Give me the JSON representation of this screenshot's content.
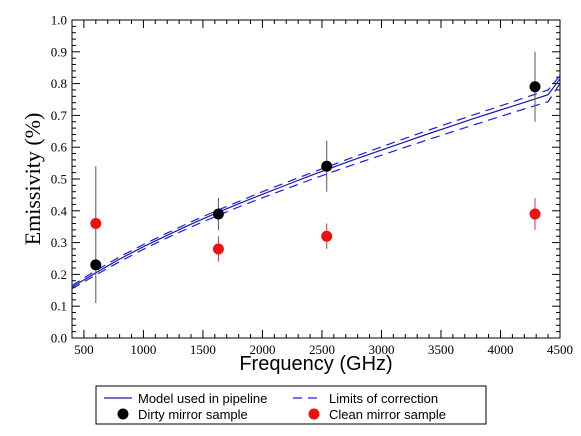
{
  "chart_data": {
    "type": "scatter",
    "title": "",
    "xlabel": "Frequency (GHz)",
    "ylabel": "Emissivity (%)",
    "xlim": [
      400,
      4500
    ],
    "ylim": [
      0.0,
      1.0
    ],
    "x_ticks": [
      500,
      1000,
      1500,
      2000,
      2500,
      3000,
      3500,
      4000,
      4500
    ],
    "x_tick_labels": [
      "500",
      "1000",
      "1500",
      "2000",
      "2500",
      "3000",
      "3500",
      "4000",
      "4500"
    ],
    "y_ticks": [
      0.0,
      0.1,
      0.2,
      0.3,
      0.4,
      0.5,
      0.6,
      0.7,
      0.8,
      0.9,
      1.0
    ],
    "y_tick_labels": [
      "0.0",
      "0.1",
      "0.2",
      "0.3",
      "0.4",
      "0.5",
      "0.6",
      "0.7",
      "0.8",
      "0.9",
      "1.0"
    ],
    "grid": false,
    "legend_position": "bottom",
    "lines": [
      {
        "name": "Model used in pipeline",
        "style": "solid",
        "color": "#1a1aa0",
        "x": [
          400,
          600,
          800,
          1000,
          1200,
          1400,
          1600,
          1800,
          2000,
          2200,
          2400,
          2600,
          2800,
          3000,
          3200,
          3400,
          3600,
          3800,
          4000,
          4200,
          4400,
          4500
        ],
        "y": [
          0.16,
          0.205,
          0.248,
          0.287,
          0.323,
          0.358,
          0.391,
          0.422,
          0.452,
          0.481,
          0.51,
          0.538,
          0.565,
          0.591,
          0.617,
          0.643,
          0.668,
          0.693,
          0.717,
          0.741,
          0.765,
          0.815
        ]
      },
      {
        "name": "Limits of correction (upper)",
        "style": "dashed",
        "color": "#1a1aee",
        "x": [
          400,
          600,
          800,
          1000,
          1200,
          1400,
          1600,
          1800,
          2000,
          2200,
          2400,
          2600,
          2800,
          3000,
          3200,
          3400,
          3600,
          3800,
          4000,
          4200,
          4400,
          4500
        ],
        "y": [
          0.165,
          0.212,
          0.255,
          0.294,
          0.33,
          0.365,
          0.398,
          0.429,
          0.46,
          0.489,
          0.518,
          0.546,
          0.574,
          0.601,
          0.628,
          0.654,
          0.68,
          0.705,
          0.73,
          0.755,
          0.78,
          0.825
        ]
      },
      {
        "name": "Limits of correction (lower)",
        "style": "dashed",
        "color": "#1a1aee",
        "x": [
          400,
          600,
          800,
          1000,
          1200,
          1400,
          1600,
          1800,
          2000,
          2200,
          2400,
          2600,
          2800,
          3000,
          3200,
          3400,
          3600,
          3800,
          4000,
          4200,
          4400,
          4500
        ],
        "y": [
          0.155,
          0.198,
          0.24,
          0.279,
          0.315,
          0.349,
          0.381,
          0.412,
          0.441,
          0.469,
          0.497,
          0.524,
          0.55,
          0.575,
          0.6,
          0.625,
          0.649,
          0.673,
          0.697,
          0.72,
          0.743,
          0.8
        ]
      }
    ],
    "series": [
      {
        "name": "Dirty mirror sample",
        "color": "#000000",
        "x": [
          600,
          1630,
          2540,
          4290
        ],
        "y": [
          0.23,
          0.39,
          0.54,
          0.79
        ],
        "err_low": [
          0.12,
          0.05,
          0.08,
          0.11
        ],
        "err_high": [
          0.31,
          0.05,
          0.08,
          0.11
        ]
      },
      {
        "name": "Clean mirror sample",
        "color": "#ee1111",
        "x": [
          600,
          1630,
          2540,
          4290
        ],
        "y": [
          0.36,
          0.28,
          0.32,
          0.39
        ],
        "err_low": [
          0.0,
          0.04,
          0.04,
          0.05
        ],
        "err_high": [
          0.0,
          0.04,
          0.04,
          0.05
        ]
      }
    ],
    "legend": {
      "entries": [
        {
          "label": "Model used in pipeline",
          "marker": "solid-line"
        },
        {
          "label": "Limits of correction",
          "marker": "dashed-line"
        },
        {
          "label": "Dirty mirror sample",
          "marker": "black-dot"
        },
        {
          "label": "Clean mirror sample",
          "marker": "red-dot"
        }
      ]
    }
  }
}
